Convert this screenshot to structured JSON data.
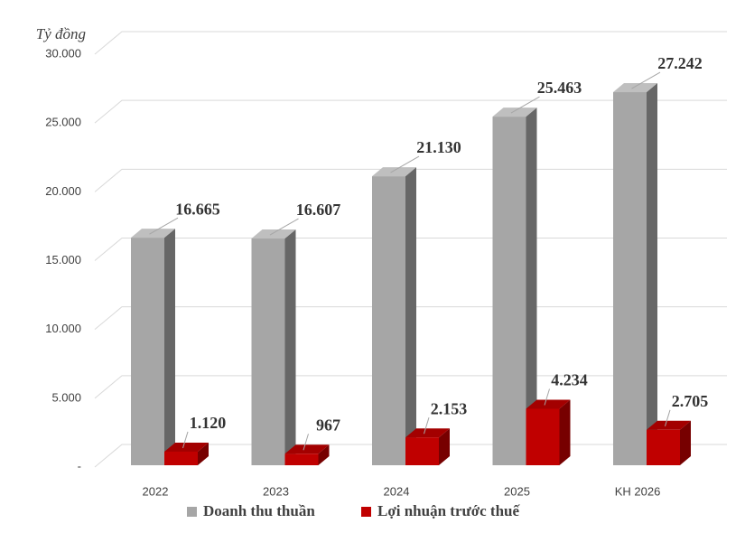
{
  "chart_data": {
    "type": "bar3d",
    "y_label": "Tỷ đồng",
    "categories": [
      "2022",
      "2023",
      "2024",
      "2025",
      "KH 2026"
    ],
    "series": [
      {
        "name": "Doanh thu thuần",
        "color": "#a6a6a6",
        "values": [
          16665,
          16607,
          21130,
          25463,
          27242
        ],
        "value_labels": [
          "16.665",
          "16.607",
          "21.130",
          "25.463",
          "27.242"
        ]
      },
      {
        "name": "Lợi nhuận trước thuế",
        "color": "#c00000",
        "values": [
          1120,
          967,
          2153,
          4234,
          2705
        ],
        "value_labels": [
          "1.120",
          "967",
          "2.153",
          "4.234",
          "2.705"
        ]
      }
    ],
    "ylim": [
      0,
      30000
    ],
    "yticks": [
      {
        "value": 0,
        "label": "-"
      },
      {
        "value": 5000,
        "label": "5.000"
      },
      {
        "value": 10000,
        "label": "10.000"
      },
      {
        "value": 15000,
        "label": "15.000"
      },
      {
        "value": 20000,
        "label": "20.000"
      },
      {
        "value": 25000,
        "label": "25.000"
      },
      {
        "value": 30000,
        "label": "30.000"
      }
    ],
    "grid": true,
    "legend": "bottom"
  }
}
